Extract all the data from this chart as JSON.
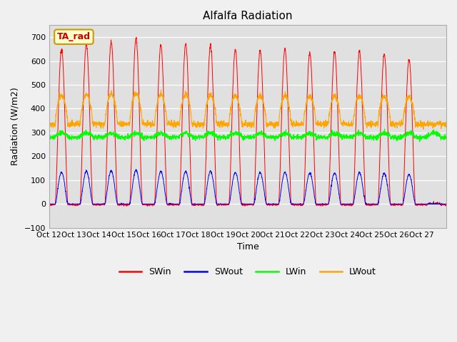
{
  "title": "Alfalfa Radiation",
  "xlabel": "Time",
  "ylabel": "Radiation (W/m2)",
  "ylim": [
    -100,
    750
  ],
  "yticks": [
    -100,
    0,
    100,
    200,
    300,
    400,
    500,
    600,
    700
  ],
  "xtick_labels": [
    "Oct 12",
    "Oct 13",
    "Oct 14",
    "Oct 15",
    "Oct 16",
    "Oct 17",
    "Oct 18",
    "Oct 19",
    "Oct 20",
    "Oct 21",
    "Oct 22",
    "Oct 23",
    "Oct 24",
    "Oct 25",
    "Oct 26",
    "Oct 27"
  ],
  "legend_labels": [
    "SWin",
    "SWout",
    "LWin",
    "LWout"
  ],
  "legend_colors": [
    "red",
    "blue",
    "lime",
    "orange"
  ],
  "annotation_text": "TA_rad",
  "annotation_color": "#cc0000",
  "annotation_bg": "#ffffcc",
  "n_days": 16,
  "SWin_peaks": [
    650,
    670,
    680,
    695,
    665,
    670,
    665,
    650,
    645,
    650,
    635,
    640,
    640,
    630,
    605,
    0
  ],
  "SWout_peak_ratio": 0.205,
  "LWin_base": 285,
  "LWout_base": 335
}
